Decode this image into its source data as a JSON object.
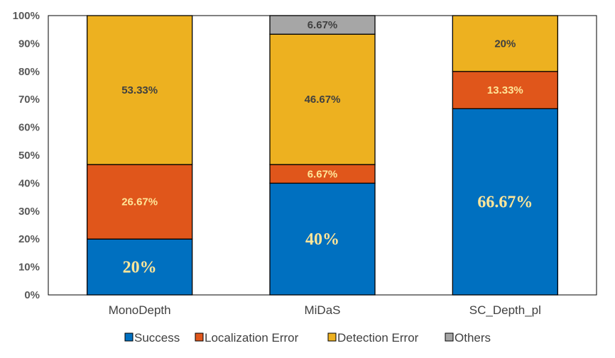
{
  "chart_data": {
    "type": "bar",
    "stacked": true,
    "categories": [
      "MonoDepth",
      "MiDaS",
      "SC_Depth_pl"
    ],
    "series": [
      {
        "name": "Success",
        "color": "#0070C0",
        "values": [
          20,
          40,
          66.67
        ],
        "labels": [
          "20%",
          "40%",
          "66.67%"
        ]
      },
      {
        "name": "Localization Error",
        "color": "#E0561B",
        "values": [
          26.67,
          6.67,
          13.33
        ],
        "labels": [
          "26.67%",
          "6.67%",
          "13.33%"
        ]
      },
      {
        "name": "Detection Error",
        "color": "#EDB120",
        "values": [
          53.33,
          46.67,
          20
        ],
        "labels": [
          "53.33%",
          "46.67%",
          "20%"
        ]
      },
      {
        "name": "Others",
        "color": "#A6A6A6",
        "values": [
          0,
          6.67,
          0
        ],
        "labels": [
          "",
          "6.67%",
          ""
        ]
      }
    ],
    "yticks": [
      "0%",
      "10%",
      "20%",
      "30%",
      "40%",
      "50%",
      "60%",
      "70%",
      "80%",
      "90%",
      "100%"
    ],
    "ylim": [
      0,
      100
    ],
    "grid": false,
    "legend_position": "bottom"
  }
}
